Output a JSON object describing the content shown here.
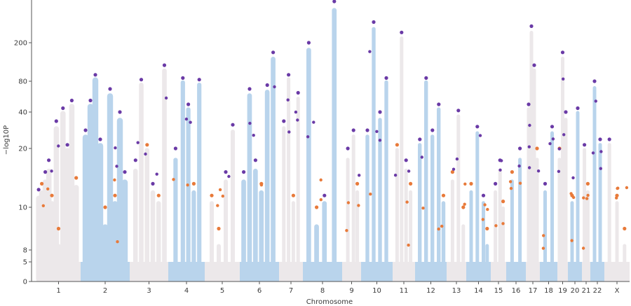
{
  "chart_data": {
    "type": "scatter",
    "title": "",
    "xlabel": "Chromosome",
    "ylabel": "−log10P",
    "y_scale": "mixed-compressed",
    "y_ticks": [
      0,
      5,
      8,
      10,
      20,
      40,
      80,
      200
    ],
    "ylim": [
      0,
      400
    ],
    "grid": false,
    "legend": "none",
    "chromosomes": [
      "1",
      "2",
      "3",
      "4",
      "5",
      "6",
      "7",
      "8",
      "9",
      "10",
      "11",
      "12",
      "13",
      "14",
      "15",
      "16",
      "17",
      "18",
      "19",
      "20",
      "21",
      "22",
      "X"
    ],
    "chromosome_colors": [
      "#ece8ea",
      "#b9d4ec",
      "#ece8ea",
      "#b9d4ec",
      "#ece8ea",
      "#b9d4ec",
      "#ece8ea",
      "#b9d4ec",
      "#ece8ea",
      "#b9d4ec",
      "#ece8ea",
      "#b9d4ec",
      "#ece8ea",
      "#b9d4ec",
      "#ece8ea",
      "#b9d4ec",
      "#ece8ea",
      "#b9d4ec",
      "#ece8ea",
      "#b9d4ec",
      "#ece8ea",
      "#b9d4ec",
      "#ece8ea"
    ],
    "peak_color_purple": "#6a3aa6",
    "peak_color_orange": "#e87a3a",
    "series": [
      {
        "chromosome": "1",
        "peaks": [
          {
            "pos": 0.05,
            "p": 13,
            "c": "p"
          },
          {
            "pos": 0.12,
            "p": 14,
            "c": "o"
          },
          {
            "pos": 0.2,
            "p": 16,
            "c": "p"
          },
          {
            "pos": 0.28,
            "p": 18,
            "c": "p"
          },
          {
            "pos": 0.35,
            "p": 12,
            "c": "o"
          },
          {
            "pos": 0.45,
            "p": 35,
            "c": "p"
          },
          {
            "pos": 0.5,
            "p": 9,
            "c": "o"
          },
          {
            "pos": 0.6,
            "p": 45,
            "c": "p"
          },
          {
            "pos": 0.7,
            "p": 22,
            "c": "p"
          },
          {
            "pos": 0.8,
            "p": 55,
            "c": "p"
          },
          {
            "pos": 0.9,
            "p": 15,
            "c": "o"
          }
        ]
      },
      {
        "chromosome": "2",
        "peaks": [
          {
            "pos": 0.1,
            "p": 30,
            "c": "p"
          },
          {
            "pos": 0.2,
            "p": 55,
            "c": "p"
          },
          {
            "pos": 0.3,
            "p": 100,
            "c": "p"
          },
          {
            "pos": 0.4,
            "p": 25,
            "c": "p"
          },
          {
            "pos": 0.5,
            "p": 10,
            "c": "o"
          },
          {
            "pos": 0.6,
            "p": 70,
            "c": "p"
          },
          {
            "pos": 0.7,
            "p": 12,
            "c": "o"
          },
          {
            "pos": 0.8,
            "p": 40,
            "c": "p"
          },
          {
            "pos": 0.9,
            "p": 16,
            "c": "p"
          }
        ]
      },
      {
        "chromosome": "3",
        "peaks": [
          {
            "pos": 0.15,
            "p": 18,
            "c": "p"
          },
          {
            "pos": 0.3,
            "p": 85,
            "c": "p"
          },
          {
            "pos": 0.45,
            "p": 22,
            "c": "o"
          },
          {
            "pos": 0.6,
            "p": 14,
            "c": "p"
          },
          {
            "pos": 0.75,
            "p": 12,
            "c": "o"
          },
          {
            "pos": 0.9,
            "p": 130,
            "c": "p"
          }
        ]
      },
      {
        "chromosome": "4",
        "peaks": [
          {
            "pos": 0.2,
            "p": 20,
            "c": "p"
          },
          {
            "pos": 0.4,
            "p": 90,
            "c": "p"
          },
          {
            "pos": 0.55,
            "p": 50,
            "c": "p"
          },
          {
            "pos": 0.7,
            "p": 14,
            "c": "o"
          },
          {
            "pos": 0.85,
            "p": 85,
            "c": "p"
          }
        ]
      },
      {
        "chromosome": "5",
        "peaks": [
          {
            "pos": 0.2,
            "p": 12,
            "c": "o"
          },
          {
            "pos": 0.4,
            "p": 9,
            "c": "o"
          },
          {
            "pos": 0.6,
            "p": 16,
            "c": "p"
          },
          {
            "pos": 0.8,
            "p": 33,
            "c": "p"
          }
        ]
      },
      {
        "chromosome": "6",
        "peaks": [
          {
            "pos": 0.1,
            "p": 16,
            "c": "p"
          },
          {
            "pos": 0.25,
            "p": 70,
            "c": "p"
          },
          {
            "pos": 0.4,
            "p": 18,
            "c": "p"
          },
          {
            "pos": 0.55,
            "p": 14,
            "c": "o"
          },
          {
            "pos": 0.7,
            "p": 75,
            "c": "p"
          },
          {
            "pos": 0.85,
            "p": 170,
            "c": "p"
          }
        ]
      },
      {
        "chromosome": "7",
        "peaks": [
          {
            "pos": 0.2,
            "p": 35,
            "c": "p"
          },
          {
            "pos": 0.4,
            "p": 100,
            "c": "p"
          },
          {
            "pos": 0.6,
            "p": 12,
            "c": "o"
          },
          {
            "pos": 0.8,
            "p": 65,
            "c": "p"
          }
        ]
      },
      {
        "chromosome": "8",
        "peaks": [
          {
            "pos": 0.15,
            "p": 200,
            "c": "p"
          },
          {
            "pos": 0.35,
            "p": 10,
            "c": "o"
          },
          {
            "pos": 0.55,
            "p": 12,
            "c": "p"
          },
          {
            "pos": 0.8,
            "p": 400,
            "c": "p"
          }
        ]
      },
      {
        "chromosome": "9",
        "peaks": [
          {
            "pos": 0.3,
            "p": 20,
            "c": "p"
          },
          {
            "pos": 0.6,
            "p": 30,
            "c": "p"
          },
          {
            "pos": 0.8,
            "p": 14,
            "c": "o"
          }
        ]
      },
      {
        "chromosome": "10",
        "peaks": [
          {
            "pos": 0.2,
            "p": 30,
            "c": "p"
          },
          {
            "pos": 0.4,
            "p": 300,
            "c": "p"
          },
          {
            "pos": 0.6,
            "p": 40,
            "c": "p"
          },
          {
            "pos": 0.8,
            "p": 90,
            "c": "p"
          }
        ]
      },
      {
        "chromosome": "11",
        "peaks": [
          {
            "pos": 0.2,
            "p": 22,
            "c": "o"
          },
          {
            "pos": 0.4,
            "p": 250,
            "c": "p"
          },
          {
            "pos": 0.6,
            "p": 18,
            "c": "p"
          },
          {
            "pos": 0.8,
            "p": 14,
            "c": "o"
          }
        ]
      },
      {
        "chromosome": "12",
        "peaks": [
          {
            "pos": 0.15,
            "p": 25,
            "c": "p"
          },
          {
            "pos": 0.35,
            "p": 90,
            "c": "p"
          },
          {
            "pos": 0.55,
            "p": 30,
            "c": "p"
          },
          {
            "pos": 0.75,
            "p": 50,
            "c": "p"
          },
          {
            "pos": 0.9,
            "p": 12,
            "c": "o"
          }
        ]
      },
      {
        "chromosome": "13",
        "peaks": [
          {
            "pos": 0.3,
            "p": 16,
            "c": "o"
          },
          {
            "pos": 0.6,
            "p": 42,
            "c": "p"
          },
          {
            "pos": 0.85,
            "p": 10,
            "c": "o"
          }
        ]
      },
      {
        "chromosome": "14",
        "peaks": [
          {
            "pos": 0.2,
            "p": 14,
            "c": "o"
          },
          {
            "pos": 0.45,
            "p": 32,
            "c": "p"
          },
          {
            "pos": 0.7,
            "p": 12,
            "c": "p"
          },
          {
            "pos": 0.85,
            "p": 9,
            "c": "o"
          }
        ]
      },
      {
        "chromosome": "15",
        "peaks": [
          {
            "pos": 0.3,
            "p": 14,
            "c": "p"
          },
          {
            "pos": 0.6,
            "p": 18,
            "c": "p"
          },
          {
            "pos": 0.8,
            "p": 11,
            "c": "o"
          }
        ]
      },
      {
        "chromosome": "16",
        "peaks": [
          {
            "pos": 0.3,
            "p": 16,
            "c": "o"
          },
          {
            "pos": 0.7,
            "p": 20,
            "c": "p"
          }
        ]
      },
      {
        "chromosome": "17",
        "peaks": [
          {
            "pos": 0.2,
            "p": 50,
            "c": "p"
          },
          {
            "pos": 0.4,
            "p": 280,
            "c": "p"
          },
          {
            "pos": 0.6,
            "p": 130,
            "c": "p"
          },
          {
            "pos": 0.8,
            "p": 20,
            "c": "o"
          }
        ]
      },
      {
        "chromosome": "18",
        "peaks": [
          {
            "pos": 0.3,
            "p": 14,
            "c": "p"
          },
          {
            "pos": 0.7,
            "p": 32,
            "c": "p"
          }
        ]
      },
      {
        "chromosome": "19",
        "peaks": [
          {
            "pos": 0.2,
            "p": 20,
            "c": "o"
          },
          {
            "pos": 0.5,
            "p": 170,
            "c": "p"
          },
          {
            "pos": 0.8,
            "p": 40,
            "c": "p"
          }
        ]
      },
      {
        "chromosome": "20",
        "peaks": [
          {
            "pos": 0.3,
            "p": 12,
            "c": "o"
          },
          {
            "pos": 0.7,
            "p": 45,
            "c": "p"
          }
        ]
      },
      {
        "chromosome": "21",
        "peaks": [
          {
            "pos": 0.3,
            "p": 22,
            "c": "p"
          },
          {
            "pos": 0.7,
            "p": 14,
            "c": "o"
          }
        ]
      },
      {
        "chromosome": "22",
        "peaks": [
          {
            "pos": 0.3,
            "p": 80,
            "c": "p"
          },
          {
            "pos": 0.7,
            "p": 25,
            "c": "p"
          }
        ]
      },
      {
        "chromosome": "X",
        "peaks": [
          {
            "pos": 0.2,
            "p": 25,
            "c": "p"
          },
          {
            "pos": 0.5,
            "p": 12,
            "c": "o"
          },
          {
            "pos": 0.8,
            "p": 9,
            "c": "o"
          }
        ]
      }
    ]
  }
}
